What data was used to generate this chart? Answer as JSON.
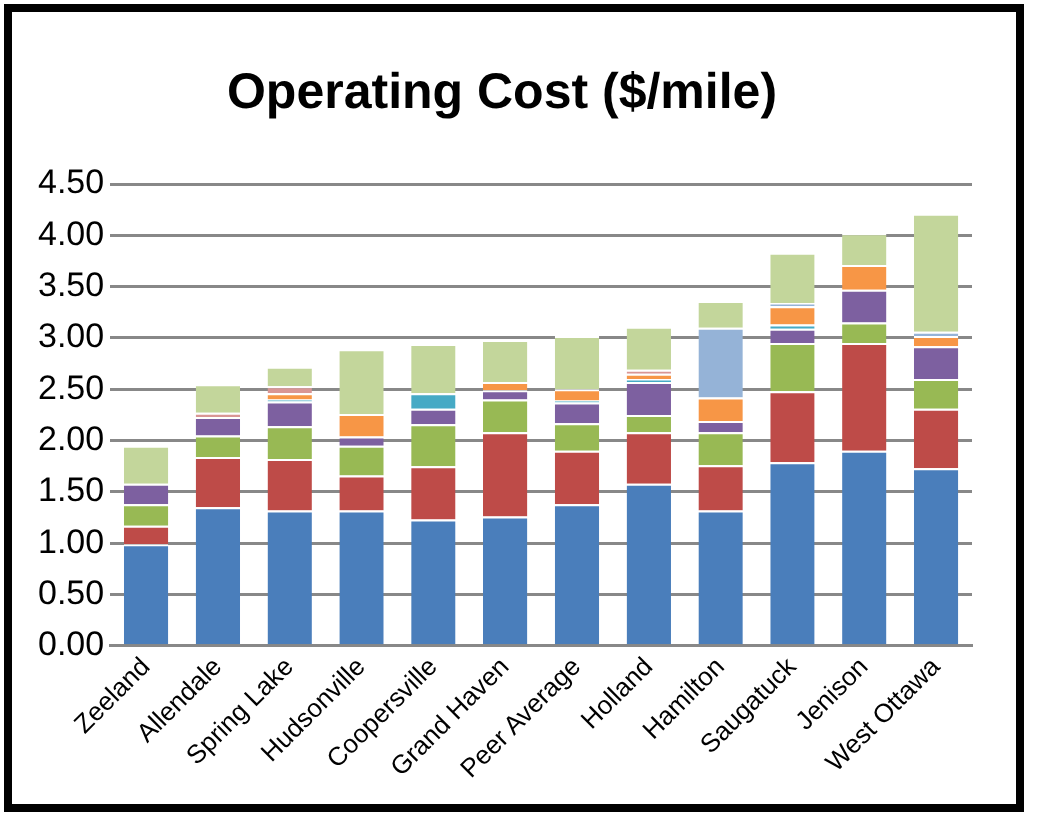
{
  "chart_data": {
    "type": "bar",
    "title": "Operating Cost ($/mile)",
    "stacked": true,
    "categories": [
      "Zeeland",
      "Allendale",
      "Spring Lake",
      "Hudsonville",
      "Coopersville",
      "Grand Haven",
      "Peer Average",
      "Holland",
      "Hamilton",
      "Saugatuck",
      "Jenison",
      "West Ottawa"
    ],
    "series": [
      {
        "color": "#4a7ebb",
        "values": [
          0.99,
          1.35,
          1.32,
          1.32,
          1.23,
          1.26,
          1.38,
          1.58,
          1.32,
          1.79,
          1.9,
          1.73
        ]
      },
      {
        "color": "#be4b48",
        "values": [
          0.18,
          0.49,
          0.5,
          0.34,
          0.52,
          0.82,
          0.52,
          0.5,
          0.44,
          0.69,
          1.05,
          0.58
        ]
      },
      {
        "color": "#98b954",
        "values": [
          0.21,
          0.21,
          0.32,
          0.29,
          0.41,
          0.32,
          0.27,
          0.17,
          0.32,
          0.47,
          0.2,
          0.29
        ]
      },
      {
        "color": "#7d60a0",
        "values": [
          0.2,
          0.18,
          0.24,
          0.09,
          0.15,
          0.09,
          0.2,
          0.32,
          0.11,
          0.14,
          0.32,
          0.32
        ]
      },
      {
        "color": "#46aac5",
        "values": [
          null,
          null,
          0.02,
          null,
          0.15,
          null,
          0.02,
          0.03,
          null,
          0.04,
          null,
          null
        ]
      },
      {
        "color": "#f79646",
        "values": [
          null,
          null,
          0.06,
          0.22,
          null,
          0.08,
          0.11,
          0.05,
          0.23,
          0.18,
          0.24,
          0.1
        ]
      },
      {
        "color": "#95b3d7",
        "values": [
          null,
          null,
          null,
          null,
          null,
          null,
          null,
          null,
          0.68,
          0.03,
          null,
          0.04
        ]
      },
      {
        "color": "#d99694",
        "values": [
          null,
          0.04,
          0.07,
          null,
          null,
          null,
          null,
          0.04,
          null,
          null,
          null,
          null
        ]
      },
      {
        "color": "#c3d69b",
        "values": [
          0.37,
          0.28,
          0.19,
          0.63,
          0.48,
          0.41,
          0.52,
          0.42,
          0.26,
          0.49,
          0.31,
          1.15
        ]
      }
    ],
    "ylim": [
      0,
      4.5
    ],
    "yticks": [
      {
        "value": 0,
        "label": "0.00"
      },
      {
        "value": 0.5,
        "label": "0.50"
      },
      {
        "value": 1,
        "label": "1.00"
      },
      {
        "value": 1.5,
        "label": "1.50"
      },
      {
        "value": 2,
        "label": "2.00"
      },
      {
        "value": 2.5,
        "label": "2.50"
      },
      {
        "value": 3,
        "label": "3.00"
      },
      {
        "value": 3.5,
        "label": "3.50"
      },
      {
        "value": 4,
        "label": "4.00"
      },
      {
        "value": 4.5,
        "label": "4.50"
      }
    ],
    "grid": "y",
    "legend": false
  }
}
